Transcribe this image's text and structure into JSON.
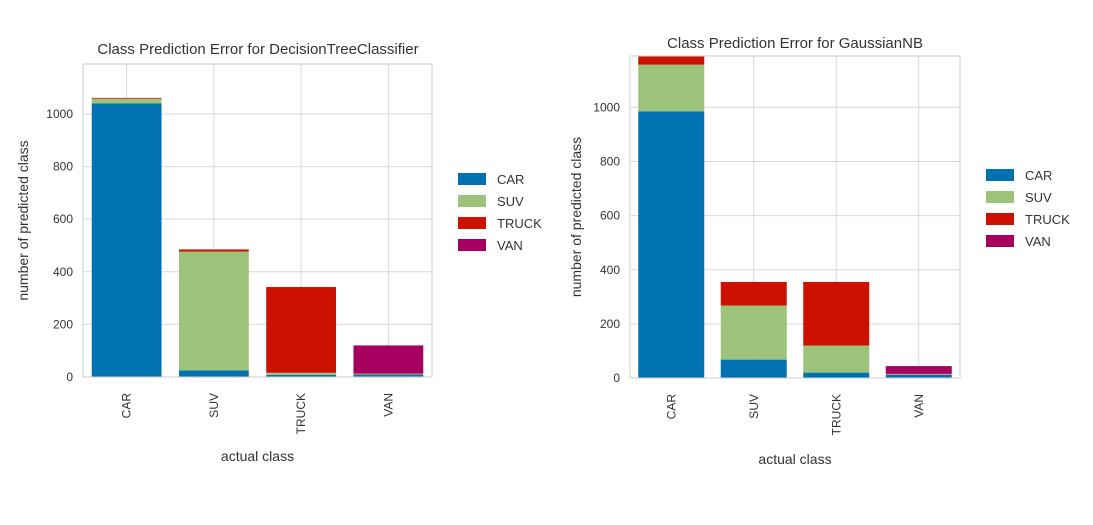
{
  "chart_data": [
    {
      "type": "bar",
      "stacked": true,
      "title": "Class Prediction Error for DecisionTreeClassifier",
      "xlabel": "actual class",
      "ylabel": "number of predicted class",
      "categories": [
        "CAR",
        "SUV",
        "TRUCK",
        "VAN"
      ],
      "ylim": [
        0,
        1190
      ],
      "yticks": [
        0,
        200,
        400,
        600,
        800,
        1000
      ],
      "grid": true,
      "legend_position": "right",
      "series": [
        {
          "name": "CAR",
          "color": "#0072b2",
          "values": [
            1040,
            25,
            8,
            10
          ]
        },
        {
          "name": "SUV",
          "color": "#9dc37a",
          "values": [
            18,
            452,
            8,
            2
          ]
        },
        {
          "name": "TRUCK",
          "color": "#cc1100",
          "values": [
            3,
            8,
            326,
            2
          ]
        },
        {
          "name": "VAN",
          "color": "#a50060",
          "values": [
            0,
            0,
            0,
            106
          ]
        }
      ]
    },
    {
      "type": "bar",
      "stacked": true,
      "title": "Class Prediction Error for GaussianNB",
      "xlabel": "actual class",
      "ylabel": "number of predicted class",
      "categories": [
        "CAR",
        "SUV",
        "TRUCK",
        "VAN"
      ],
      "ylim": [
        0,
        1190
      ],
      "yticks": [
        0,
        200,
        400,
        600,
        800,
        1000
      ],
      "grid": true,
      "legend_position": "right",
      "series": [
        {
          "name": "CAR",
          "color": "#0072b2",
          "values": [
            985,
            68,
            20,
            12
          ]
        },
        {
          "name": "SUV",
          "color": "#9dc37a",
          "values": [
            173,
            200,
            100,
            2
          ]
        },
        {
          "name": "TRUCK",
          "color": "#cc1100",
          "values": [
            30,
            87,
            235,
            2
          ]
        },
        {
          "name": "VAN",
          "color": "#a50060",
          "values": [
            0,
            0,
            0,
            28
          ]
        }
      ]
    }
  ]
}
